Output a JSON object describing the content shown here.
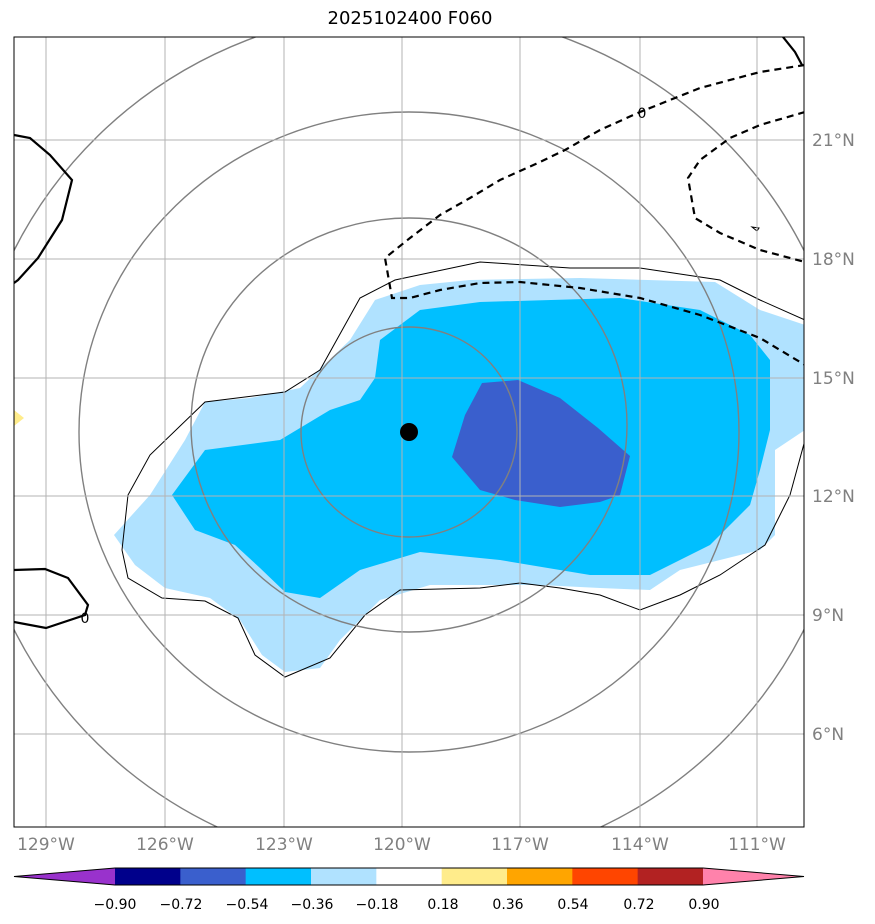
{
  "title": "2025102400 F060",
  "map": {
    "lon_labels": [
      "129°W",
      "126°W",
      "123°W",
      "120°W",
      "117°W",
      "114°W",
      "111°W"
    ],
    "lat_labels": [
      "21°N",
      "18°N",
      "15°N",
      "12°N",
      "9°N",
      "6°N"
    ],
    "contour_zero_label": "0"
  },
  "colorbar": {
    "colors": [
      "#9932CC",
      "#00008B",
      "#3A5FCD",
      "#00BFFF",
      "#B0E2FF",
      "#FFFFFF",
      "#FFEC8B",
      "#FFA500",
      "#FF4500",
      "#B22222",
      "#FF82AB"
    ],
    "tick_labels": [
      "−0.90",
      "−0.72",
      "−0.54",
      "−0.36",
      "−0.18",
      "0.18",
      "0.36",
      "0.54",
      "0.72",
      "0.90"
    ]
  }
}
